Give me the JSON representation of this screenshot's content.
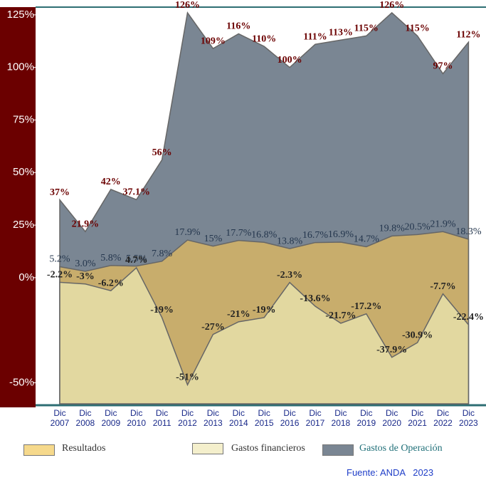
{
  "chart_data": {
    "type": "area",
    "categories": [
      "Dic\n2007",
      "Dic\n2008",
      "Dic\n2009",
      "Dic\n2010",
      "Dic\n2011",
      "Dic\n2012",
      "Dic\n2013",
      "Dic\n2014",
      "Dic\n2015",
      "Dic\n2016",
      "Dic\n2017",
      "Dic\n2018",
      "Dic\n2019",
      "Dic\n2020",
      "Dic\n2021",
      "Dic\n2022",
      "Dic\n2023"
    ],
    "series": [
      {
        "name": "Gastos de Operación",
        "color": "#7a8693",
        "label_color": "#6b0000",
        "values": [
          37,
          21.9,
          42,
          37.1,
          56,
          126,
          109,
          116,
          110,
          100,
          111,
          113,
          115,
          126,
          115,
          97,
          112
        ],
        "value_labels": [
          "37%",
          "21.9%",
          "42%",
          "37.1%",
          "56%",
          "126%",
          "109%",
          "116%",
          "110%",
          "100%",
          "111%",
          "113%",
          "115%",
          "126%",
          "115%",
          "97%",
          "112%"
        ]
      },
      {
        "name": "Resultados",
        "color": "#c8ad6c",
        "legend_color": "#f6d98c",
        "label_color": "#24364d",
        "values": [
          5.2,
          3.0,
          5.8,
          5.5,
          7.8,
          17.9,
          15,
          17.7,
          16.8,
          13.8,
          16.7,
          16.9,
          14.7,
          19.8,
          20.5,
          21.9,
          18.3
        ],
        "value_labels": [
          "5.2%",
          "3.0%",
          "5.8%",
          "5.5%",
          "7.8%",
          "17.9%",
          "15%",
          "17.7%",
          "16.8%",
          "13.8%",
          "16.7%",
          "16.9%",
          "14.7%",
          "19.8%",
          "20.5%",
          "21.9%",
          "18.3%"
        ]
      },
      {
        "name": "Gastos financieros",
        "color": "#e2d8a0",
        "legend_color": "#f4efcc",
        "label_color": "#222222",
        "values": [
          -2.2,
          -3,
          -6.2,
          4.7,
          -19,
          -51,
          -27,
          -21,
          -19,
          -2.3,
          -13.6,
          -21.7,
          -17.2,
          -37.9,
          -30.9,
          -7.7,
          -22.4
        ],
        "value_labels": [
          "-2.2%",
          "-3%",
          "-6.2%",
          "4.7%",
          "-19%",
          "-51%",
          "-27%",
          "-21%",
          "-19%",
          "-2.3%",
          "-13.6%",
          "-21.7%",
          "-17.2%",
          "-37.9%",
          "-30.9%",
          "-7.7%",
          "-22.4%"
        ]
      }
    ],
    "ylim": [
      -60,
      128
    ],
    "yticks": [
      {
        "value": -50,
        "label": "-50%"
      },
      {
        "value": 0,
        "label": "0%"
      },
      {
        "value": 25,
        "label": "25%"
      },
      {
        "value": 50,
        "label": "50%"
      },
      {
        "value": 75,
        "label": "75%"
      },
      {
        "value": 100,
        "label": "100%"
      },
      {
        "value": 125,
        "label": "125%"
      }
    ],
    "source": "Fuente: ANDA   2023"
  }
}
